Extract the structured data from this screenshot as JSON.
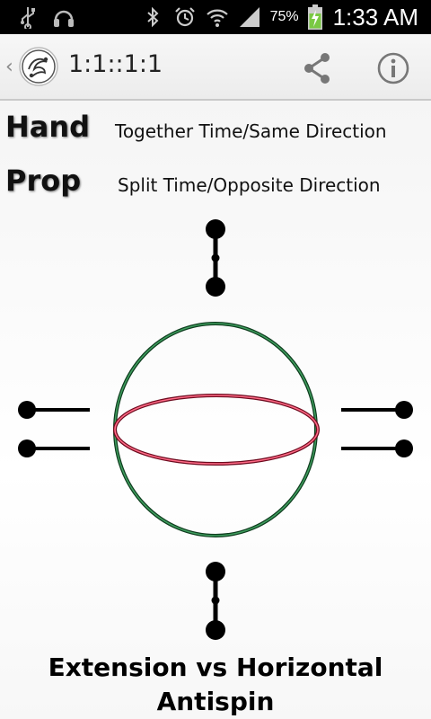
{
  "status_bar": {
    "battery_percent": "75%",
    "time": "1:33 AM",
    "icons_left": [
      "usb-icon",
      "headphones-icon"
    ],
    "icons_right": [
      "bluetooth-icon",
      "alarm-icon",
      "wifi-icon",
      "signal-icon",
      "battery-charging-icon"
    ]
  },
  "action_bar": {
    "title": "1:1::1:1",
    "up_caret": "‹",
    "actions": [
      "share-icon",
      "info-icon"
    ]
  },
  "legend": {
    "hand_label": "Hand",
    "hand_desc": "Together Time/Same Direction",
    "prop_label": "Prop",
    "prop_desc": "Split Time/Opposite Direction"
  },
  "diagram": {
    "outer_circle_color": "#1f6b3a",
    "inner_ellipse_color": "#c2193a",
    "marker_color": "#000000"
  },
  "footer": {
    "line1": "Extension vs Horizontal",
    "line2": "Antispin"
  }
}
